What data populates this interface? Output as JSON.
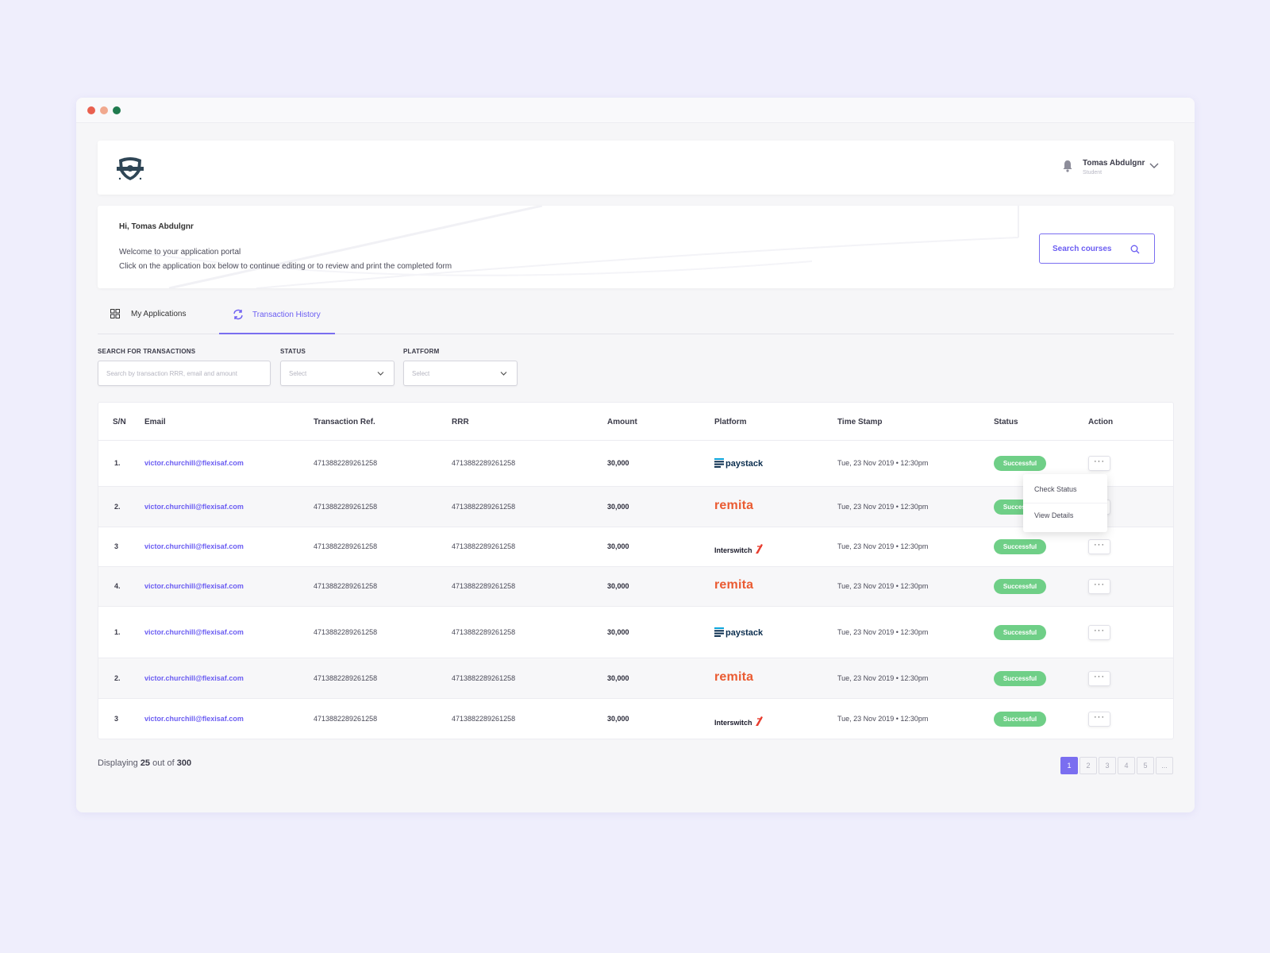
{
  "header": {
    "user_name": "Tomas Abdulgnr",
    "user_role": "Student"
  },
  "welcome": {
    "greeting": "Hi, Tomas Abdulgnr",
    "line1": "Welcome to your application portal",
    "line2": "Click on the application box below to continue editing or to review and print the completed form",
    "search_label": "Search courses"
  },
  "tabs": {
    "my_applications": "My Applications",
    "transaction_history": "Transaction History"
  },
  "filters": {
    "search_label": "SEARCH FOR TRANSACTIONS",
    "search_placeholder": "Search by transaction RRR, email and amount",
    "status_label": "STATUS",
    "status_placeholder": "Select",
    "platform_label": "PLATFORM",
    "platform_placeholder": "Select"
  },
  "table": {
    "headers": [
      "S/N",
      "Email",
      "Transaction Ref.",
      "RRR",
      "Amount",
      "Platform",
      "Time Stamp",
      "Status",
      "Action"
    ],
    "rows": [
      {
        "sn": "1.",
        "email": "victor.churchill@flexisaf.com",
        "ref": "4713882289261258",
        "rrr": "4713882289261258",
        "amount": "30,000",
        "platform": "paystack",
        "timestamp": "Tue, 23 Nov 2019  •  12:30pm",
        "status": "Successful"
      },
      {
        "sn": "2.",
        "email": "victor.churchill@flexisaf.com",
        "ref": "4713882289261258",
        "rrr": "4713882289261258",
        "amount": "30,000",
        "platform": "remita",
        "timestamp": "Tue, 23 Nov 2019  •  12:30pm",
        "status": "Successful"
      },
      {
        "sn": "3",
        "email": "victor.churchill@flexisaf.com",
        "ref": "4713882289261258",
        "rrr": "4713882289261258",
        "amount": "30,000",
        "platform": "Interswitch",
        "timestamp": "Tue, 23 Nov 2019  •  12:30pm",
        "status": "Successful"
      },
      {
        "sn": "4.",
        "email": "victor.churchill@flexisaf.com",
        "ref": "4713882289261258",
        "rrr": "4713882289261258",
        "amount": "30,000",
        "platform": "remita",
        "timestamp": "Tue, 23 Nov 2019  •  12:30pm",
        "status": "Successful"
      },
      {
        "sn": "1.",
        "email": "victor.churchill@flexisaf.com",
        "ref": "4713882289261258",
        "rrr": "4713882289261258",
        "amount": "30,000",
        "platform": "paystack",
        "timestamp": "Tue, 23 Nov 2019  •  12:30pm",
        "status": "Successful"
      },
      {
        "sn": "2.",
        "email": "victor.churchill@flexisaf.com",
        "ref": "4713882289261258",
        "rrr": "4713882289261258",
        "amount": "30,000",
        "platform": "remita",
        "timestamp": "Tue, 23 Nov 2019  •  12:30pm",
        "status": "Successful"
      },
      {
        "sn": "3",
        "email": "victor.churchill@flexisaf.com",
        "ref": "4713882289261258",
        "rrr": "4713882289261258",
        "amount": "30,000",
        "platform": "Interswitch",
        "timestamp": "Tue, 23 Nov 2019  •  12:30pm",
        "status": "Successful"
      }
    ],
    "action_glyph": "···"
  },
  "action_menu": {
    "check_status": "Check Status",
    "view_details": "View Details"
  },
  "footer": {
    "displaying_prefix": "Displaying",
    "shown": "25",
    "out_of": "out of",
    "total": "300",
    "pages": [
      "1",
      "2",
      "3",
      "4",
      "5",
      "..."
    ],
    "current_page": "1"
  },
  "colors": {
    "accent": "#7a6ef0",
    "success": "#6fcf87",
    "background": "#efeefc"
  },
  "icons": [
    "bell-icon",
    "chevron-down-icon",
    "search-icon",
    "grid-icon",
    "refresh-icon",
    "shield-logo"
  ]
}
